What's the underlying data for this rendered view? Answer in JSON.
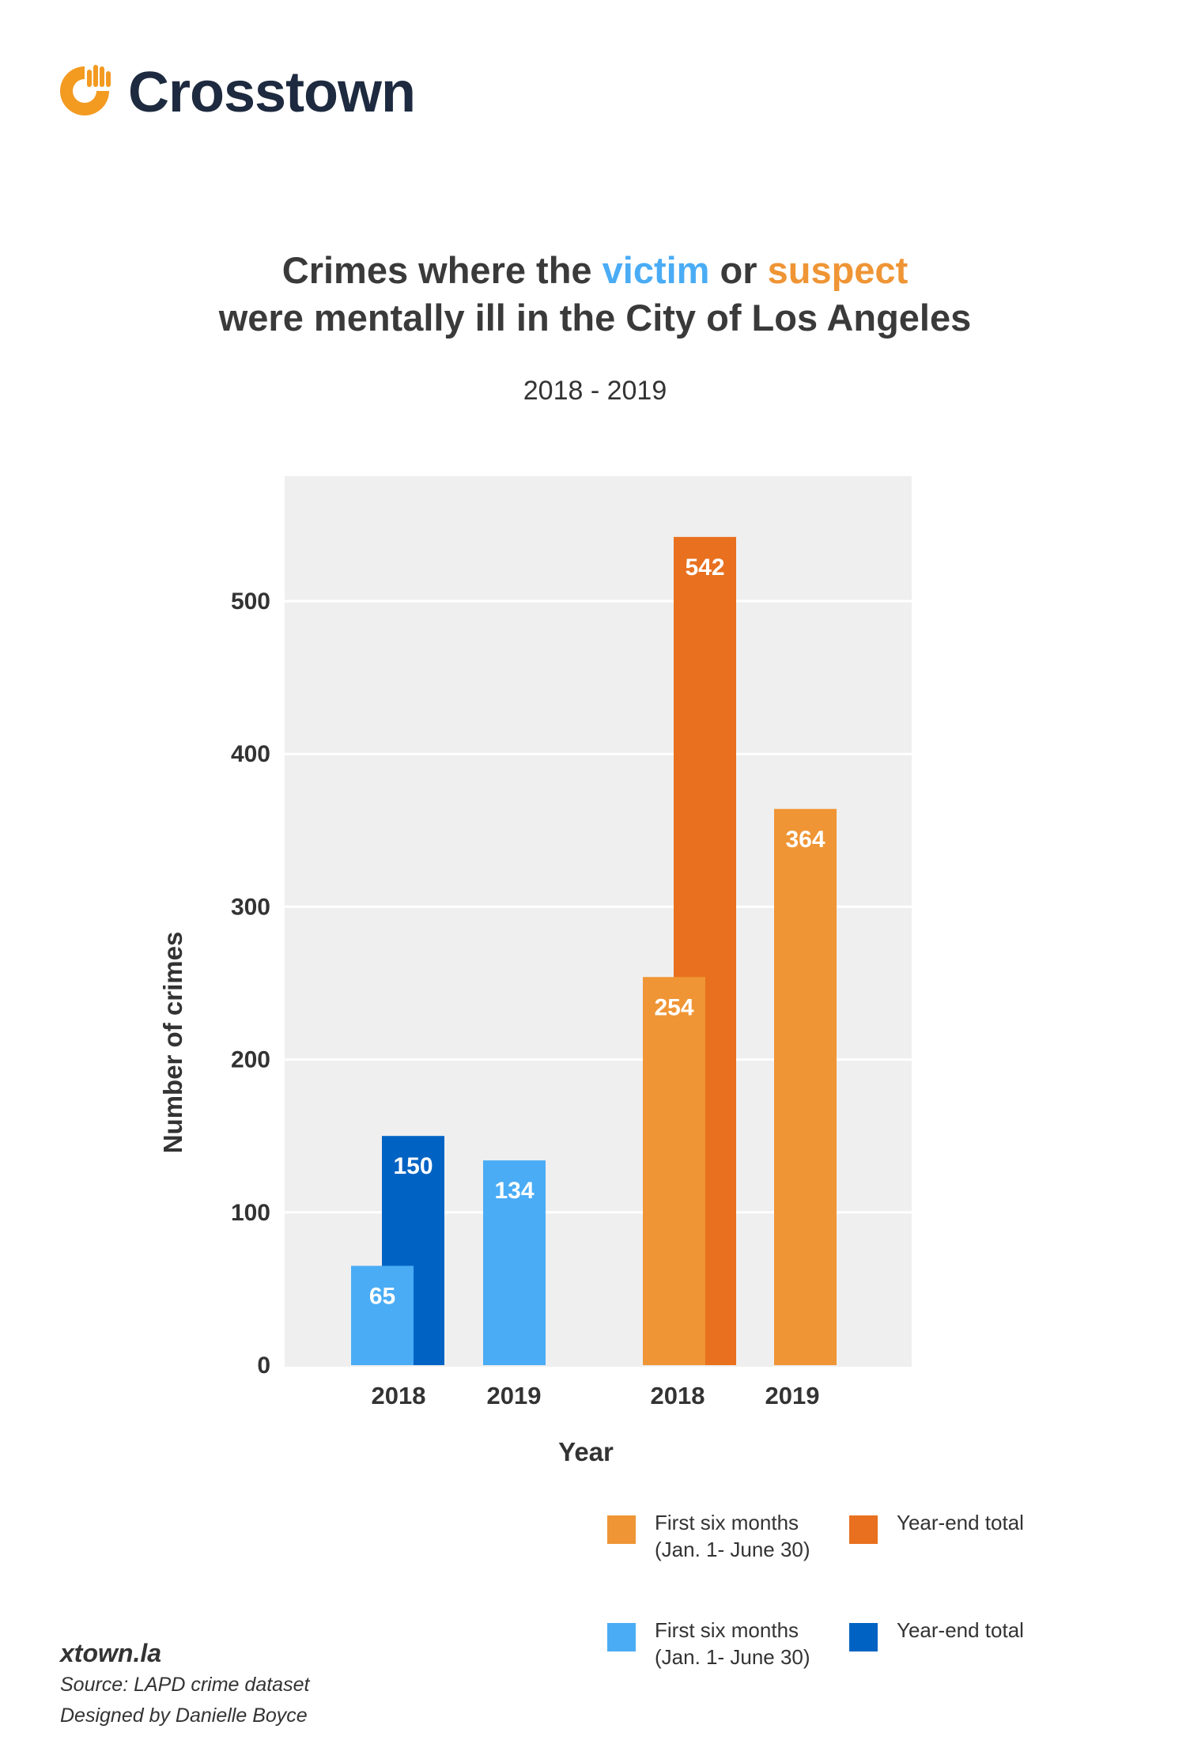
{
  "brand": {
    "name": "Crosstown",
    "logo_icon": "crosstown-hand-logo-icon",
    "logo_color": "#f39a21",
    "text_color": "#1d2a3f"
  },
  "title": {
    "prefix": "Crimes where the",
    "victim": "victim",
    "middle": "or",
    "suspect": "suspect",
    "line2": "were mentally ill in the City of Los Angeles"
  },
  "subtitle": "2018 - 2019",
  "colors": {
    "victim_first": "#4aacf5",
    "victim_total": "#0063c4",
    "suspect_first": "#ef9535",
    "suspect_total": "#e8701f",
    "plot_bg": "#efefef",
    "grid": "#ffffff"
  },
  "chart_data": {
    "type": "bar",
    "title": "Crimes where the victim or suspect were mentally ill in the City of Los Angeles",
    "subtitle": "2018 - 2019",
    "xlabel": "Year",
    "ylabel": "Number of crimes",
    "ylim": [
      0,
      585
    ],
    "yticks": [
      0,
      100,
      200,
      300,
      400,
      500
    ],
    "grid": true,
    "groups": [
      {
        "name": "victim",
        "categories": [
          "2018",
          "2019"
        ],
        "series": [
          {
            "name": "First six months (Jan. 1- June 30)",
            "values": [
              65,
              134
            ]
          },
          {
            "name": "Year-end total",
            "values": [
              150,
              null
            ]
          }
        ]
      },
      {
        "name": "suspect",
        "categories": [
          "2018",
          "2019"
        ],
        "series": [
          {
            "name": "First six months (Jan. 1- June 30)",
            "values": [
              254,
              364
            ]
          },
          {
            "name": "Year-end total",
            "values": [
              542,
              null
            ]
          }
        ]
      }
    ],
    "bars": [
      {
        "group": "victim",
        "year": "2018",
        "kind": "total",
        "value": 150,
        "label": "150"
      },
      {
        "group": "victim",
        "year": "2018",
        "kind": "first",
        "value": 65,
        "label": "65"
      },
      {
        "group": "victim",
        "year": "2019",
        "kind": "first",
        "value": 134,
        "label": "134"
      },
      {
        "group": "suspect",
        "year": "2018",
        "kind": "total",
        "value": 542,
        "label": "542"
      },
      {
        "group": "suspect",
        "year": "2018",
        "kind": "first",
        "value": 254,
        "label": "254"
      },
      {
        "group": "suspect",
        "year": "2019",
        "kind": "first",
        "value": 364,
        "label": "364"
      }
    ],
    "x_tick_labels": [
      "2018",
      "2019",
      "2018",
      "2019"
    ],
    "legend": {
      "placement": "bottom-right",
      "items": [
        {
          "label_line1": "First six months",
          "label_line2": "(Jan. 1- June 30)",
          "color_key": "suspect_first"
        },
        {
          "label_line1": "Year-end total",
          "label_line2": "",
          "color_key": "suspect_total"
        },
        {
          "label_line1": "First six months",
          "label_line2": "(Jan. 1- June 30)",
          "color_key": "victim_first"
        },
        {
          "label_line1": "Year-end total",
          "label_line2": "",
          "color_key": "victim_total"
        }
      ]
    }
  },
  "footer": {
    "site": "xtown.la",
    "source": "Source: LAPD crime dataset",
    "designer": "Designed by Danielle Boyce"
  }
}
